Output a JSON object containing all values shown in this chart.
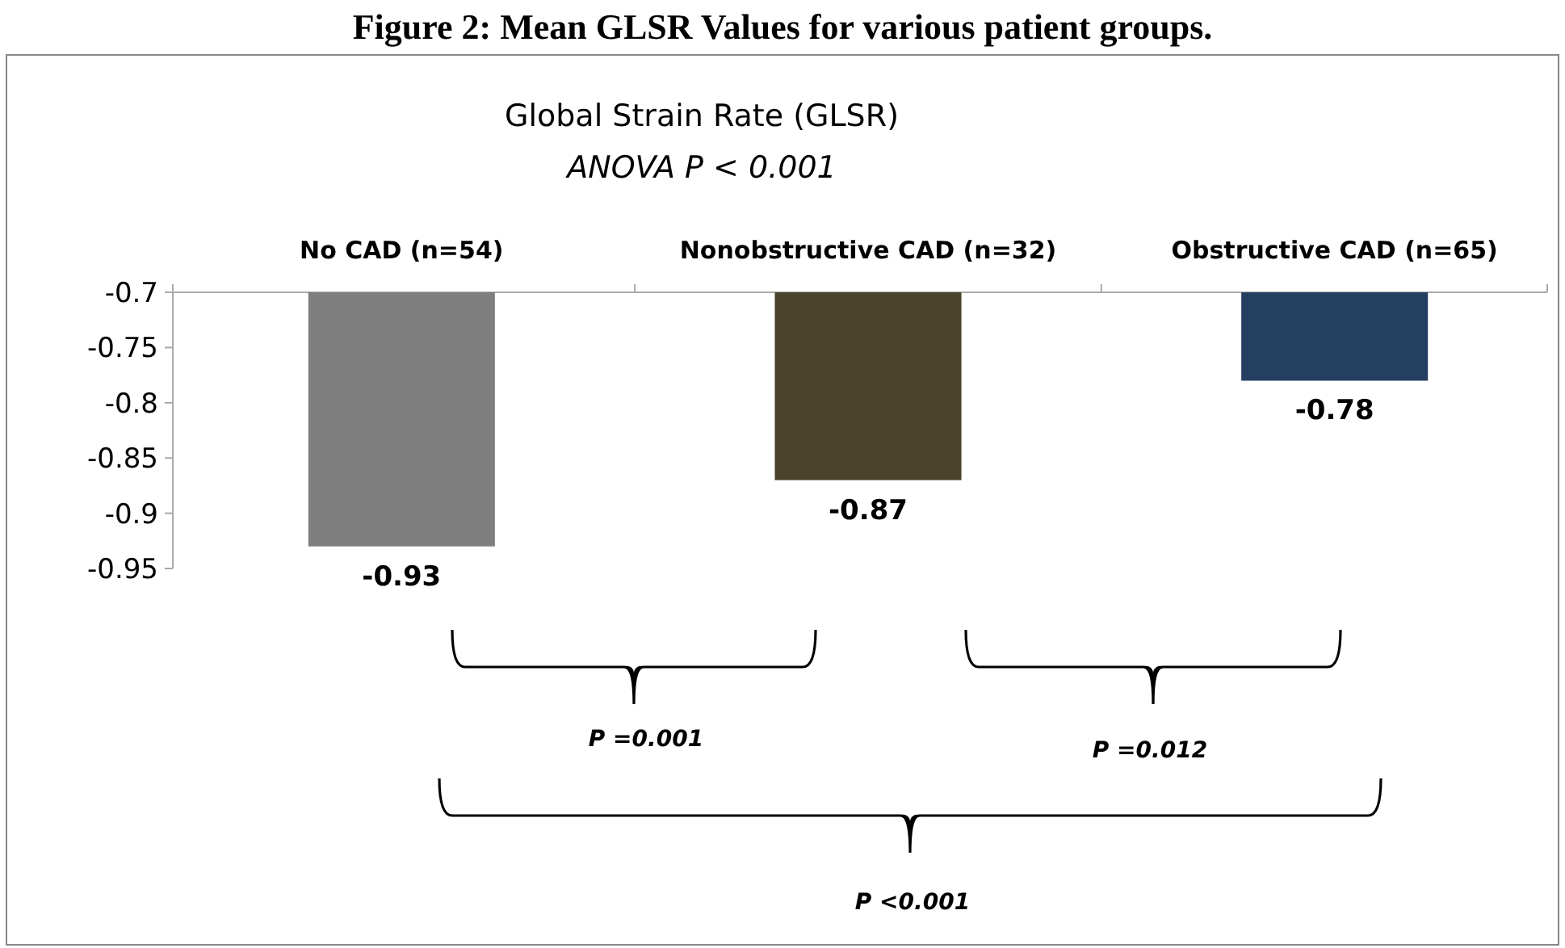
{
  "chart_data": {
    "type": "bar",
    "title": "Figure 2: Mean GLSR Values for various patient groups.",
    "subtitle": "Global Strain Rate (GLSR)",
    "categories": [
      "No CAD (n=54)",
      "Nonobstructive CAD (n=32)",
      "Obstructive CAD (n=65)"
    ],
    "values": [
      -0.93,
      -0.87,
      -0.78
    ],
    "colors": [
      "#7f7f7f",
      "#49432b",
      "#243f60"
    ],
    "ylim": [
      -0.95,
      -0.7
    ],
    "yticks": [
      -0.7,
      -0.75,
      -0.8,
      -0.85,
      -0.9,
      -0.95
    ],
    "data_labels": true,
    "grid": false,
    "annotations": [
      "ANOVA P < 0.001",
      "P =0.001",
      "P =0.012",
      "P <0.001"
    ]
  }
}
